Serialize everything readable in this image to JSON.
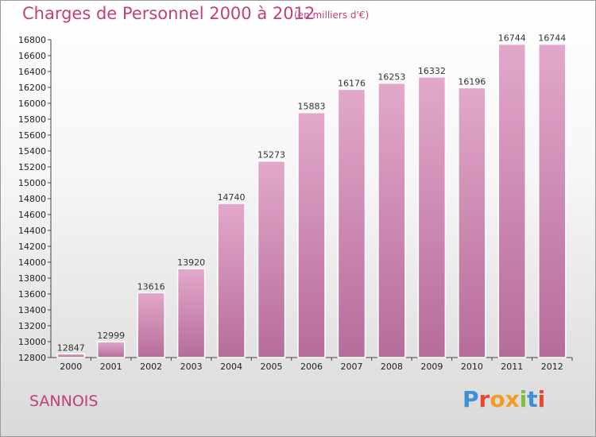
{
  "title": "Charges de Personnel 2000 à 2012",
  "subtitle": "(en milliers d'€)",
  "city": "SANNOIS",
  "brand": "Proxiti",
  "colors": {
    "title": "#c0407a",
    "bar_top": "#e2a8cb",
    "bar_bottom": "#b66c99",
    "brand_letters": [
      "#3d8fd6",
      "#e8472f",
      "#f39c1f",
      "#f39c1f",
      "#7cbf3a",
      "#3d8fd6",
      "#e8472f"
    ]
  },
  "chart_data": {
    "type": "bar",
    "categories": [
      "2000",
      "2001",
      "2002",
      "2003",
      "2004",
      "2005",
      "2006",
      "2007",
      "2008",
      "2009",
      "2010",
      "2011",
      "2012"
    ],
    "values": [
      12847,
      12999,
      13616,
      13920,
      14740,
      15273,
      15883,
      16176,
      16253,
      16332,
      16196,
      16744,
      16744
    ],
    "ylim": [
      12800,
      16800
    ],
    "yticks": [
      12800,
      13000,
      13200,
      13400,
      13600,
      13800,
      14000,
      14200,
      14400,
      14600,
      14800,
      15000,
      15200,
      15400,
      15600,
      15800,
      16000,
      16200,
      16400,
      16600,
      16800
    ],
    "grid": false,
    "xlabel": "",
    "ylabel": ""
  }
}
